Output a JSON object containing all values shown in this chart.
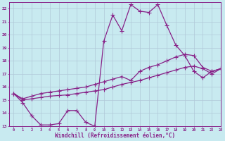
{
  "xlabel": "Windchill (Refroidissement éolien,°C)",
  "background_color": "#c8eaf0",
  "grid_color": "#b0c8d8",
  "line_color": "#882288",
  "xlim": [
    -0.5,
    23
  ],
  "ylim": [
    13,
    22.5
  ],
  "yticks": [
    13,
    14,
    15,
    16,
    17,
    18,
    19,
    20,
    21,
    22
  ],
  "xticks": [
    0,
    1,
    2,
    3,
    4,
    5,
    6,
    7,
    8,
    9,
    10,
    11,
    12,
    13,
    14,
    15,
    16,
    17,
    18,
    19,
    20,
    21,
    22,
    23
  ],
  "curve1_x": [
    0,
    1,
    2,
    3,
    4,
    5,
    6,
    7,
    8,
    9,
    10,
    11,
    12,
    13,
    14,
    15,
    16,
    17,
    18,
    19,
    20,
    21,
    22,
    23
  ],
  "curve1_y": [
    15.5,
    14.8,
    13.8,
    13.1,
    13.1,
    13.2,
    14.2,
    14.2,
    13.3,
    13.0,
    19.5,
    21.5,
    20.3,
    22.3,
    21.8,
    21.7,
    22.3,
    20.7,
    19.2,
    18.4,
    17.2,
    16.7,
    17.2,
    17.4
  ],
  "curve2_x": [
    0,
    1,
    2,
    3,
    4,
    5,
    6,
    7,
    8,
    9,
    10,
    11,
    12,
    13,
    14,
    15,
    16,
    17,
    18,
    19,
    20,
    21,
    22,
    23
  ],
  "curve2_y": [
    15.5,
    15.1,
    15.3,
    15.5,
    15.6,
    15.7,
    15.8,
    15.9,
    16.0,
    16.2,
    16.4,
    16.6,
    16.8,
    16.5,
    17.2,
    17.5,
    17.7,
    18.0,
    18.3,
    18.5,
    18.4,
    17.5,
    17.2,
    17.4
  ],
  "curve3_x": [
    0,
    1,
    2,
    3,
    4,
    5,
    6,
    7,
    8,
    9,
    10,
    11,
    12,
    13,
    14,
    15,
    16,
    17,
    18,
    19,
    20,
    21,
    22,
    23
  ],
  "curve3_y": [
    15.5,
    15.0,
    15.1,
    15.2,
    15.3,
    15.35,
    15.4,
    15.5,
    15.6,
    15.7,
    15.8,
    16.0,
    16.2,
    16.35,
    16.5,
    16.7,
    16.9,
    17.1,
    17.3,
    17.5,
    17.6,
    17.4,
    17.0,
    17.4
  ],
  "marker": "+",
  "markersize": 4.0,
  "linewidth": 0.9
}
